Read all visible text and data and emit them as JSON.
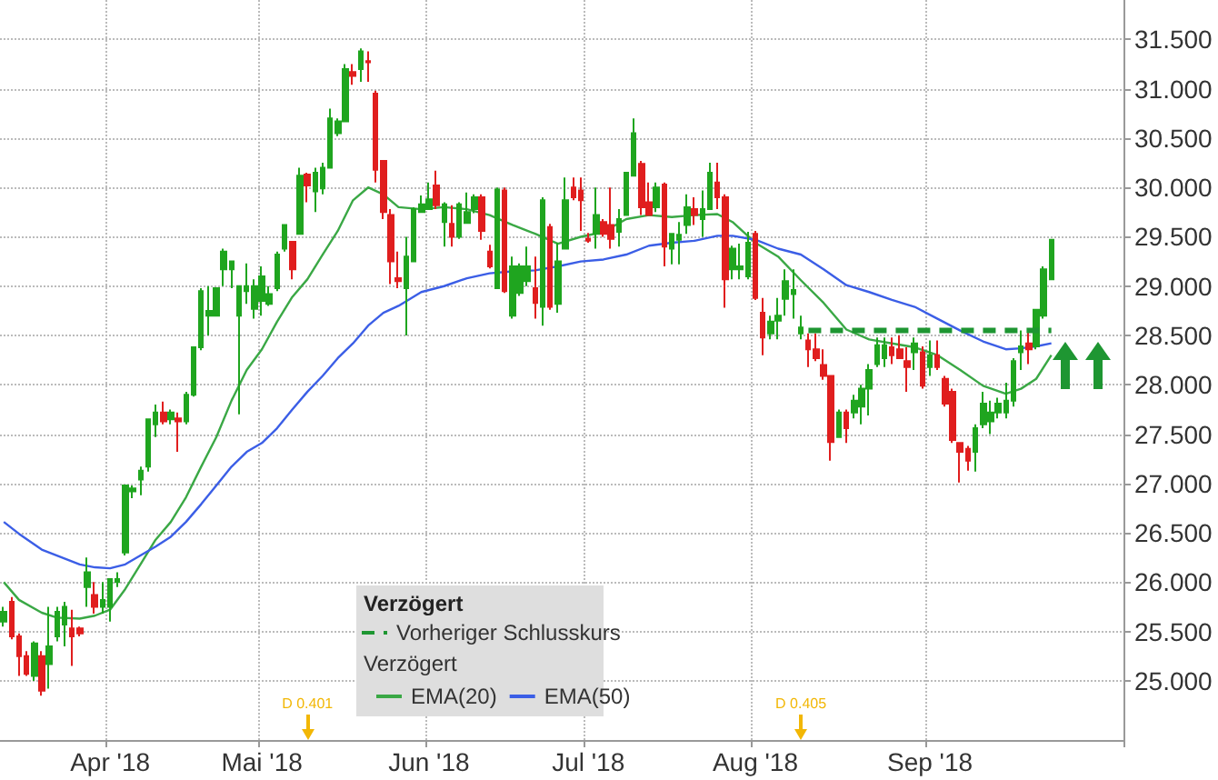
{
  "chart_data": {
    "type": "candlestick",
    "categories": [
      null,
      null,
      null,
      null,
      null,
      null,
      null,
      null,
      null,
      null,
      null,
      null,
      null,
      null,
      "Apr '18",
      null,
      null,
      null,
      null,
      null,
      null,
      null,
      null,
      null,
      null,
      null,
      null,
      null,
      null,
      null,
      null,
      null,
      null,
      null,
      "Mai '18",
      null,
      null,
      null,
      null,
      null,
      null,
      null,
      null,
      null,
      null,
      null,
      null,
      null,
      null,
      null,
      null,
      null,
      null,
      null,
      null,
      null,
      "Jun '18",
      null,
      null,
      null,
      null,
      null,
      null,
      null,
      null,
      null,
      null,
      null,
      null,
      null,
      null,
      null,
      null,
      null,
      null,
      null,
      null,
      "Jul '18",
      null,
      null,
      null,
      null,
      null,
      null,
      null,
      null,
      null,
      null,
      null,
      null,
      null,
      null,
      null,
      null,
      null,
      null,
      null,
      null,
      null,
      "Aug '18",
      null,
      null,
      null,
      null,
      null,
      null,
      null,
      null,
      null,
      null,
      null,
      null,
      null,
      null,
      null,
      null,
      null,
      null,
      null,
      null,
      null,
      null,
      "Sep '18",
      null,
      null,
      null,
      null,
      null,
      null,
      null,
      null,
      null,
      null,
      null,
      null,
      null,
      null,
      null,
      null
    ],
    "ohlc": [
      [
        25.6,
        25.75,
        25.55,
        25.7
      ],
      [
        25.8,
        25.85,
        25.42,
        25.45
      ],
      [
        25.45,
        25.48,
        25.05,
        25.25
      ],
      [
        25.25,
        25.3,
        25.05,
        25.07
      ],
      [
        25.05,
        25.4,
        25.0,
        25.38
      ],
      [
        25.25,
        25.3,
        24.85,
        24.9
      ],
      [
        25.17,
        25.75,
        24.92,
        25.35
      ],
      [
        25.45,
        25.75,
        25.4,
        25.7
      ],
      [
        25.57,
        25.8,
        25.35,
        25.75
      ],
      [
        25.53,
        25.72,
        25.15,
        25.45
      ],
      [
        25.53,
        25.55,
        25.45,
        25.48
      ],
      [
        25.95,
        26.25,
        25.75,
        26.1
      ],
      [
        25.87,
        26.0,
        25.68,
        25.75
      ],
      [
        25.75,
        26.0,
        25.68,
        25.82
      ],
      [
        25.75,
        26.03,
        25.6,
        26.03
      ],
      [
        26.0,
        26.1,
        25.95,
        26.03
      ],
      [
        26.3,
        26.98,
        26.27,
        26.98
      ],
      [
        26.92,
        26.98,
        26.85,
        26.95
      ],
      [
        27.04,
        27.17,
        26.88,
        27.13
      ],
      [
        27.17,
        27.65,
        27.12,
        27.65
      ],
      [
        27.6,
        27.8,
        27.47,
        27.72
      ],
      [
        27.72,
        27.83,
        27.6,
        27.63
      ],
      [
        27.65,
        27.75,
        27.6,
        27.72
      ],
      [
        27.66,
        27.72,
        27.32,
        27.63
      ],
      [
        27.63,
        27.93,
        27.6,
        27.9
      ],
      [
        27.9,
        28.38,
        27.88,
        28.38
      ],
      [
        28.38,
        28.98,
        28.35,
        28.95
      ],
      [
        28.7,
        29.0,
        28.5,
        28.75
      ],
      [
        28.7,
        28.98,
        28.7,
        28.98
      ],
      [
        29.17,
        29.38,
        29.0,
        29.35
      ],
      [
        29.17,
        29.25,
        28.98,
        29.25
      ],
      [
        28.7,
        29.0,
        27.7,
        29.0
      ],
      [
        28.95,
        29.23,
        28.82,
        29.0
      ],
      [
        28.77,
        29.07,
        28.67,
        29.0
      ],
      [
        28.85,
        29.2,
        28.7,
        29.1
      ],
      [
        28.82,
        29.0,
        28.8,
        28.92
      ],
      [
        28.98,
        29.35,
        28.95,
        29.32
      ],
      [
        29.38,
        29.62,
        29.35,
        29.62
      ],
      [
        29.45,
        29.45,
        29.07,
        29.17
      ],
      [
        29.53,
        30.2,
        29.53,
        30.12
      ],
      [
        30.13,
        30.15,
        29.85,
        30.02
      ],
      [
        29.96,
        30.2,
        29.75,
        30.15
      ],
      [
        29.99,
        30.25,
        29.93,
        30.2
      ],
      [
        30.2,
        30.8,
        30.2,
        30.7
      ],
      [
        30.55,
        30.7,
        30.52,
        30.67
      ],
      [
        30.67,
        31.25,
        30.67,
        31.2
      ],
      [
        31.17,
        31.25,
        31.04,
        31.13
      ],
      [
        31.2,
        31.41,
        31.07,
        31.38
      ],
      [
        31.28,
        31.38,
        31.07,
        31.27
      ],
      [
        30.95,
        30.98,
        30.05,
        30.18
      ],
      [
        30.27,
        30.27,
        29.68,
        29.75
      ],
      [
        29.72,
        29.78,
        29.02,
        29.25
      ],
      [
        29.08,
        29.35,
        28.98,
        29.05
      ],
      [
        28.98,
        29.5,
        28.5,
        29.3
      ],
      [
        29.25,
        29.8,
        29.25,
        29.78
      ],
      [
        29.75,
        29.92,
        29.75,
        29.83
      ],
      [
        29.78,
        30.05,
        29.78,
        29.88
      ],
      [
        30.02,
        30.17,
        29.78,
        29.82
      ],
      [
        29.65,
        29.85,
        29.4,
        29.83
      ],
      [
        29.63,
        29.82,
        29.4,
        29.5
      ],
      [
        29.5,
        29.85,
        29.48,
        29.83
      ],
      [
        29.64,
        29.95,
        29.63,
        29.75
      ],
      [
        29.78,
        29.93,
        29.74,
        29.9
      ],
      [
        29.9,
        29.93,
        29.47,
        29.56
      ],
      [
        29.35,
        29.42,
        29.18,
        29.2
      ],
      [
        28.98,
        30.0,
        28.98,
        29.98
      ],
      [
        29.97,
        30.0,
        28.93,
        28.95
      ],
      [
        28.7,
        29.3,
        28.67,
        29.2
      ],
      [
        28.93,
        29.23,
        28.9,
        29.2
      ],
      [
        29.05,
        29.4,
        29.0,
        29.2
      ],
      [
        28.98,
        29.3,
        28.67,
        28.83
      ],
      [
        28.79,
        29.9,
        28.6,
        29.87
      ],
      [
        29.6,
        29.63,
        28.76,
        28.79
      ],
      [
        28.82,
        29.44,
        28.73,
        29.25
      ],
      [
        29.38,
        30.1,
        29.38,
        29.87
      ],
      [
        30.0,
        30.1,
        29.87,
        29.9
      ],
      [
        29.97,
        30.1,
        29.56,
        29.87
      ],
      [
        29.48,
        29.54,
        29.44,
        29.46
      ],
      [
        29.53,
        30.0,
        29.38,
        29.72
      ],
      [
        29.65,
        29.68,
        29.5,
        29.53
      ],
      [
        29.62,
        30.0,
        29.38,
        29.48
      ],
      [
        29.55,
        29.78,
        29.4,
        29.68
      ],
      [
        29.72,
        30.15,
        29.72,
        30.15
      ],
      [
        30.12,
        30.7,
        30.12,
        30.55
      ],
      [
        30.24,
        30.27,
        29.72,
        29.8
      ],
      [
        29.85,
        30.05,
        29.72,
        29.72
      ],
      [
        29.8,
        30.05,
        29.75,
        30.0
      ],
      [
        30.03,
        30.05,
        29.2,
        29.4
      ],
      [
        29.38,
        29.53,
        29.22,
        29.53
      ],
      [
        29.47,
        29.65,
        29.22,
        29.52
      ],
      [
        29.62,
        29.93,
        29.53,
        29.8
      ],
      [
        29.78,
        29.9,
        29.62,
        29.72
      ],
      [
        29.68,
        29.97,
        29.5,
        29.78
      ],
      [
        29.78,
        30.25,
        29.78,
        30.15
      ],
      [
        30.05,
        30.25,
        29.78,
        29.9
      ],
      [
        29.9,
        29.93,
        28.78,
        29.07
      ],
      [
        29.17,
        29.41,
        29.07,
        29.38
      ],
      [
        29.17,
        29.43,
        29.07,
        29.2
      ],
      [
        29.1,
        29.55,
        29.07,
        29.44
      ],
      [
        29.53,
        29.56,
        28.86,
        28.88
      ],
      [
        28.73,
        28.88,
        28.3,
        28.48
      ],
      [
        28.52,
        28.7,
        28.46,
        28.64
      ],
      [
        28.65,
        28.88,
        28.46,
        28.7
      ],
      [
        28.87,
        29.17,
        28.7,
        29.05
      ],
      [
        28.92,
        29.17,
        28.67,
        28.96
      ],
      [
        28.52,
        28.7,
        28.46,
        28.58
      ],
      [
        28.45,
        28.52,
        28.18,
        28.36
      ],
      [
        28.36,
        28.52,
        28.24,
        28.27
      ],
      [
        28.2,
        28.36,
        28.05,
        28.09
      ],
      [
        28.09,
        28.09,
        27.23,
        27.42
      ],
      [
        27.47,
        27.75,
        27.47,
        27.72
      ],
      [
        27.72,
        27.75,
        27.41,
        27.56
      ],
      [
        27.72,
        27.9,
        27.66,
        27.84
      ],
      [
        27.78,
        28.0,
        27.6,
        27.96
      ],
      [
        27.96,
        28.21,
        27.69,
        28.15
      ],
      [
        28.21,
        28.48,
        28.18,
        28.4
      ],
      [
        28.27,
        28.48,
        28.18,
        28.4
      ],
      [
        28.38,
        28.48,
        28.21,
        28.3
      ],
      [
        28.36,
        28.5,
        28.27,
        28.27
      ],
      [
        28.24,
        28.38,
        27.93,
        28.18
      ],
      [
        28.33,
        28.48,
        28.15,
        28.42
      ],
      [
        28.33,
        28.39,
        27.96,
        27.99
      ],
      [
        28.18,
        28.45,
        28.09,
        28.3
      ],
      [
        28.3,
        28.45,
        28.15,
        28.18
      ],
      [
        28.06,
        28.09,
        27.78,
        27.81
      ],
      [
        27.93,
        27.96,
        27.41,
        27.44
      ],
      [
        27.41,
        27.41,
        27.01,
        27.32
      ],
      [
        27.35,
        27.38,
        27.13,
        27.23
      ],
      [
        27.32,
        27.6,
        27.12,
        27.56
      ],
      [
        27.6,
        27.93,
        27.56,
        27.81
      ],
      [
        27.63,
        27.84,
        27.5,
        27.72
      ],
      [
        27.72,
        27.87,
        27.66,
        27.81
      ],
      [
        27.72,
        28.02,
        27.66,
        27.84
      ],
      [
        27.84,
        28.27,
        27.78,
        28.24
      ],
      [
        28.33,
        28.55,
        28.15,
        28.39
      ],
      [
        28.42,
        28.55,
        28.21,
        28.36
      ],
      [
        28.39,
        28.76,
        28.36,
        28.76
      ],
      [
        28.7,
        29.2,
        28.67,
        29.17
      ],
      [
        29.07,
        29.47,
        29.07,
        29.47
      ]
    ],
    "series": [
      {
        "name": "Vorheriger Schlusskurs",
        "type": "line",
        "line_style": "dashed",
        "color": "#1e9632",
        "values": [
          null,
          null,
          null,
          null,
          null,
          null,
          null,
          null,
          null,
          null,
          null,
          null,
          null,
          null,
          null,
          null,
          null,
          null,
          null,
          null,
          null,
          null,
          null,
          null,
          null,
          null,
          null,
          null,
          null,
          null,
          null,
          null,
          null,
          null,
          null,
          null,
          null,
          null,
          null,
          null,
          null,
          null,
          null,
          null,
          null,
          null,
          null,
          null,
          null,
          null,
          null,
          null,
          null,
          null,
          null,
          null,
          null,
          null,
          null,
          null,
          null,
          null,
          null,
          null,
          null,
          null,
          null,
          null,
          null,
          null,
          null,
          null,
          null,
          null,
          null,
          null,
          null,
          null,
          null,
          null,
          null,
          null,
          null,
          null,
          null,
          null,
          null,
          null,
          null,
          null,
          null,
          null,
          null,
          null,
          null,
          null,
          null,
          null,
          null,
          null,
          null,
          null,
          null,
          null,
          null,
          null,
          28.55,
          28.55,
          28.55,
          28.55,
          28.55,
          28.55,
          28.55,
          28.55,
          28.55,
          28.55,
          28.55,
          28.55,
          28.55,
          28.55,
          28.55,
          28.55,
          28.55,
          28.55,
          28.55,
          28.55,
          28.55,
          28.55,
          28.55,
          28.55,
          28.55,
          28.55,
          28.55,
          28.55,
          28.55,
          28.55,
          28.55,
          28.55,
          28.55
        ]
      },
      {
        "name": "EMA(20)",
        "type": "line",
        "color": "#3aa845",
        "values": [
          26.0,
          null,
          25.82,
          null,
          null,
          25.69,
          null,
          25.64,
          null,
          null,
          25.63,
          null,
          25.66,
          null,
          25.72,
          null,
          25.93,
          null,
          26.18,
          null,
          26.43,
          null,
          26.61,
          null,
          26.86,
          null,
          27.17,
          null,
          27.47,
          null,
          27.84,
          null,
          28.15,
          null,
          28.36,
          null,
          28.64,
          null,
          28.89,
          null,
          29.07,
          null,
          29.32,
          null,
          29.56,
          null,
          29.87,
          null,
          30.0,
          null,
          29.93,
          null,
          29.8,
          null,
          null,
          29.78,
          null,
          null,
          29.8,
          null,
          null,
          29.78,
          null,
          null,
          29.72,
          null,
          null,
          29.62,
          null,
          null,
          29.53,
          null,
          null,
          29.43,
          null,
          null,
          29.5,
          null,
          null,
          29.55,
          null,
          null,
          29.68,
          null,
          null,
          29.72,
          null,
          null,
          29.7,
          null,
          null,
          29.72,
          null,
          null,
          29.73,
          null,
          29.65,
          null,
          null,
          29.44,
          null,
          null,
          29.3,
          null,
          null,
          29.06,
          null,
          null,
          28.83,
          null,
          null,
          28.56,
          null,
          null,
          28.46,
          null,
          null,
          28.42,
          null,
          null,
          28.38,
          null,
          null,
          28.3,
          null,
          null,
          28.15,
          null,
          null,
          27.99,
          null,
          null,
          27.91,
          null,
          27.96,
          null,
          28.06,
          null,
          28.3
        ]
      },
      {
        "name": "EMA(50)",
        "type": "line",
        "color": "#3b5ee6",
        "values": [
          26.61,
          null,
          26.49,
          null,
          null,
          26.33,
          null,
          26.27,
          null,
          null,
          26.18,
          null,
          26.15,
          null,
          26.14,
          null,
          26.18,
          null,
          26.27,
          null,
          26.36,
          null,
          26.46,
          null,
          26.61,
          null,
          26.79,
          null,
          26.98,
          null,
          27.17,
          null,
          27.32,
          null,
          27.41,
          null,
          27.56,
          null,
          27.75,
          null,
          27.93,
          null,
          28.09,
          null,
          28.27,
          null,
          28.42,
          null,
          28.6,
          null,
          28.73,
          null,
          28.8,
          null,
          null,
          28.94,
          null,
          null,
          29.0,
          null,
          null,
          29.08,
          null,
          null,
          29.13,
          null,
          null,
          29.15,
          null,
          null,
          29.16,
          null,
          null,
          29.2,
          null,
          null,
          29.25,
          null,
          null,
          29.27,
          null,
          null,
          29.32,
          null,
          null,
          29.41,
          null,
          null,
          29.44,
          null,
          null,
          29.46,
          null,
          null,
          29.51,
          null,
          29.51,
          null,
          null,
          29.47,
          null,
          null,
          29.38,
          null,
          null,
          29.32,
          null,
          null,
          29.17,
          null,
          null,
          29.01,
          null,
          null,
          28.94,
          null,
          null,
          28.86,
          null,
          null,
          28.79,
          null,
          null,
          28.67,
          null,
          null,
          28.55,
          null,
          null,
          28.44,
          null,
          null,
          28.36,
          null,
          28.37,
          null,
          28.39,
          null,
          28.42
        ]
      }
    ],
    "ylim": [
      24.4,
      31.9
    ],
    "yticks": [
      {
        "value": 25,
        "label": "25.000"
      },
      {
        "value": 25.5,
        "label": "25.500"
      },
      {
        "value": 26,
        "label": "26.000"
      },
      {
        "value": 26.5,
        "label": "26.500"
      },
      {
        "value": 27,
        "label": "27.000"
      },
      {
        "value": 27.5,
        "label": "27.500"
      },
      {
        "value": 28,
        "label": "28.000"
      },
      {
        "value": 28.5,
        "label": "28.500"
      },
      {
        "value": 29,
        "label": "29.000"
      },
      {
        "value": 29.5,
        "label": "29.500"
      },
      {
        "value": 30,
        "label": "30.000"
      },
      {
        "value": 30.5,
        "label": "30.500"
      },
      {
        "value": 31,
        "label": "31.000"
      },
      {
        "value": 31.5,
        "label": "31.500"
      }
    ],
    "grid": true,
    "legend": "bottom",
    "legend_title": "Verzögert",
    "marker": "none",
    "annotations": [
      "D 0.401",
      "D 0.405",
      "Verzögert"
    ]
  }
}
